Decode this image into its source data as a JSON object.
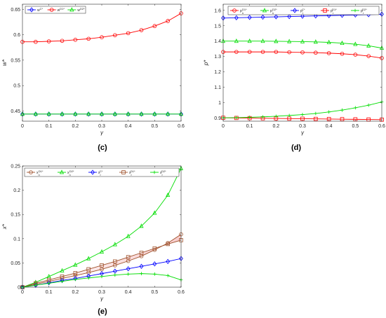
{
  "chart_data": [
    {
      "type": "line",
      "panel": "c",
      "caption": "(c)",
      "xlabel": "γ",
      "ylabel": "w*",
      "xlim": [
        0,
        0.6
      ],
      "ylim": [
        0.43,
        0.66
      ],
      "xticks": [
        "0",
        "0.1",
        "0.2",
        "0.3",
        "0.4",
        "0.5",
        "0.6"
      ],
      "yticks": [
        "0.45",
        "0.5",
        "0.55",
        "0.6",
        "0.65"
      ],
      "xtick_vals": [
        0,
        0.1,
        0.2,
        0.3,
        0.4,
        0.5,
        0.6
      ],
      "ytick_vals": [
        0.45,
        0.5,
        0.55,
        0.6,
        0.65
      ],
      "legend_placement": "top-left",
      "x": [
        0,
        0.05,
        0.1,
        0.15,
        0.2,
        0.25,
        0.3,
        0.35,
        0.4,
        0.45,
        0.5,
        0.55,
        0.6
      ],
      "series": [
        {
          "name": "w^C*",
          "color": "#0000ff",
          "marker": "diamond",
          "values": [
            0.444,
            0.444,
            0.444,
            0.444,
            0.444,
            0.444,
            0.444,
            0.444,
            0.444,
            0.444,
            0.444,
            0.444,
            0.444
          ]
        },
        {
          "name": "w^D1*",
          "color": "#ff0000",
          "marker": "circle",
          "values": [
            0.586,
            0.586,
            0.587,
            0.588,
            0.59,
            0.592,
            0.595,
            0.599,
            0.603,
            0.609,
            0.617,
            0.627,
            0.642
          ]
        },
        {
          "name": "w^D2*",
          "color": "#00dd00",
          "marker": "triangle",
          "values": [
            0.444,
            0.444,
            0.444,
            0.444,
            0.444,
            0.444,
            0.444,
            0.444,
            0.444,
            0.444,
            0.444,
            0.444,
            0.444
          ]
        }
      ]
    },
    {
      "type": "line",
      "panel": "d",
      "caption": "(d)",
      "xlabel": "γ",
      "ylabel": "p*",
      "xlim": [
        0,
        0.6
      ],
      "ylim": [
        0.88,
        1.64
      ],
      "xticks": [
        "0",
        "0.1",
        "0.2",
        "0.3",
        "0.4",
        "0.5",
        "0.6"
      ],
      "yticks": [
        "0.9",
        "1",
        "1.1",
        "1.2",
        "1.3",
        "1.4",
        "1.5",
        "1.6"
      ],
      "xtick_vals": [
        0,
        0.1,
        0.2,
        0.3,
        0.4,
        0.5,
        0.6
      ],
      "ytick_vals": [
        0.9,
        1.0,
        1.1,
        1.2,
        1.3,
        1.4,
        1.5,
        1.6
      ],
      "legend_placement": "top",
      "x": [
        0,
        0.05,
        0.1,
        0.15,
        0.2,
        0.25,
        0.3,
        0.35,
        0.4,
        0.45,
        0.5,
        0.55,
        0.6
      ],
      "series": [
        {
          "name": "p_n^D1*",
          "color": "#ff0000",
          "marker": "circle",
          "values": [
            1.33,
            1.33,
            1.33,
            1.33,
            1.33,
            1.328,
            1.327,
            1.325,
            1.322,
            1.318,
            1.312,
            1.303,
            1.29
          ]
        },
        {
          "name": "p_n^D2*",
          "color": "#00dd00",
          "marker": "triangle",
          "values": [
            1.4,
            1.4,
            1.4,
            1.4,
            1.399,
            1.398,
            1.397,
            1.395,
            1.392,
            1.387,
            1.38,
            1.37,
            1.355
          ]
        },
        {
          "name": "p_r^C*",
          "color": "#0000ff",
          "marker": "diamond",
          "values": [
            1.55,
            1.552,
            1.554,
            1.556,
            1.558,
            1.56,
            1.562,
            1.564,
            1.566,
            1.568,
            1.57,
            1.572,
            1.575
          ]
        },
        {
          "name": "p_r^D1*",
          "color": "#ff0000",
          "marker": "square",
          "values": [
            0.902,
            0.901,
            0.9,
            0.899,
            0.898,
            0.897,
            0.896,
            0.895,
            0.894,
            0.893,
            0.892,
            0.891,
            0.89
          ]
        },
        {
          "name": "p_r^D2*",
          "color": "#00dd00",
          "marker": "plus",
          "values": [
            0.902,
            0.903,
            0.905,
            0.908,
            0.912,
            0.917,
            0.923,
            0.93,
            0.94,
            0.952,
            0.967,
            0.984,
            1.005
          ]
        }
      ]
    },
    {
      "type": "line",
      "panel": "e",
      "caption": "(e)",
      "xlabel": "γ",
      "ylabel": "x*",
      "xlim": [
        0,
        0.6
      ],
      "ylim": [
        0,
        0.25
      ],
      "xticks": [
        "0",
        "0.1",
        "0.2",
        "0.3",
        "0.4",
        "0.5",
        "0.6"
      ],
      "yticks": [
        "0",
        "0.05",
        "0.1",
        "0.15",
        "0.2",
        "0.25"
      ],
      "xtick_vals": [
        0,
        0.1,
        0.2,
        0.3,
        0.4,
        0.5,
        0.6
      ],
      "ytick_vals": [
        0,
        0.05,
        0.1,
        0.15,
        0.2,
        0.25
      ],
      "legend_placement": "top",
      "x": [
        0,
        0.05,
        0.1,
        0.15,
        0.2,
        0.25,
        0.3,
        0.35,
        0.4,
        0.45,
        0.5,
        0.55,
        0.6
      ],
      "series": [
        {
          "name": "x_n^D1*",
          "color": "#a0522d",
          "marker": "circle",
          "values": [
            0,
            0.006,
            0.012,
            0.018,
            0.024,
            0.03,
            0.037,
            0.045,
            0.054,
            0.064,
            0.077,
            0.091,
            0.109
          ]
        },
        {
          "name": "x_n^D2*",
          "color": "#00dd00",
          "marker": "triangle",
          "values": [
            0,
            0.01,
            0.022,
            0.034,
            0.046,
            0.059,
            0.073,
            0.088,
            0.105,
            0.126,
            0.153,
            0.19,
            0.245
          ]
        },
        {
          "name": "x_r^C*",
          "color": "#0000ff",
          "marker": "diamond",
          "values": [
            0,
            0.004,
            0.009,
            0.014,
            0.018,
            0.023,
            0.028,
            0.033,
            0.038,
            0.043,
            0.048,
            0.053,
            0.059
          ]
        },
        {
          "name": "x_r^D1*",
          "color": "#a0522d",
          "marker": "square",
          "values": [
            0,
            0.008,
            0.015,
            0.022,
            0.029,
            0.037,
            0.045,
            0.053,
            0.062,
            0.071,
            0.08,
            0.089,
            0.097
          ]
        },
        {
          "name": "x_r^D2*",
          "color": "#00dd00",
          "marker": "plus",
          "values": [
            0,
            0.004,
            0.008,
            0.012,
            0.016,
            0.019,
            0.022,
            0.025,
            0.027,
            0.028,
            0.027,
            0.024,
            0.015
          ]
        }
      ]
    }
  ]
}
